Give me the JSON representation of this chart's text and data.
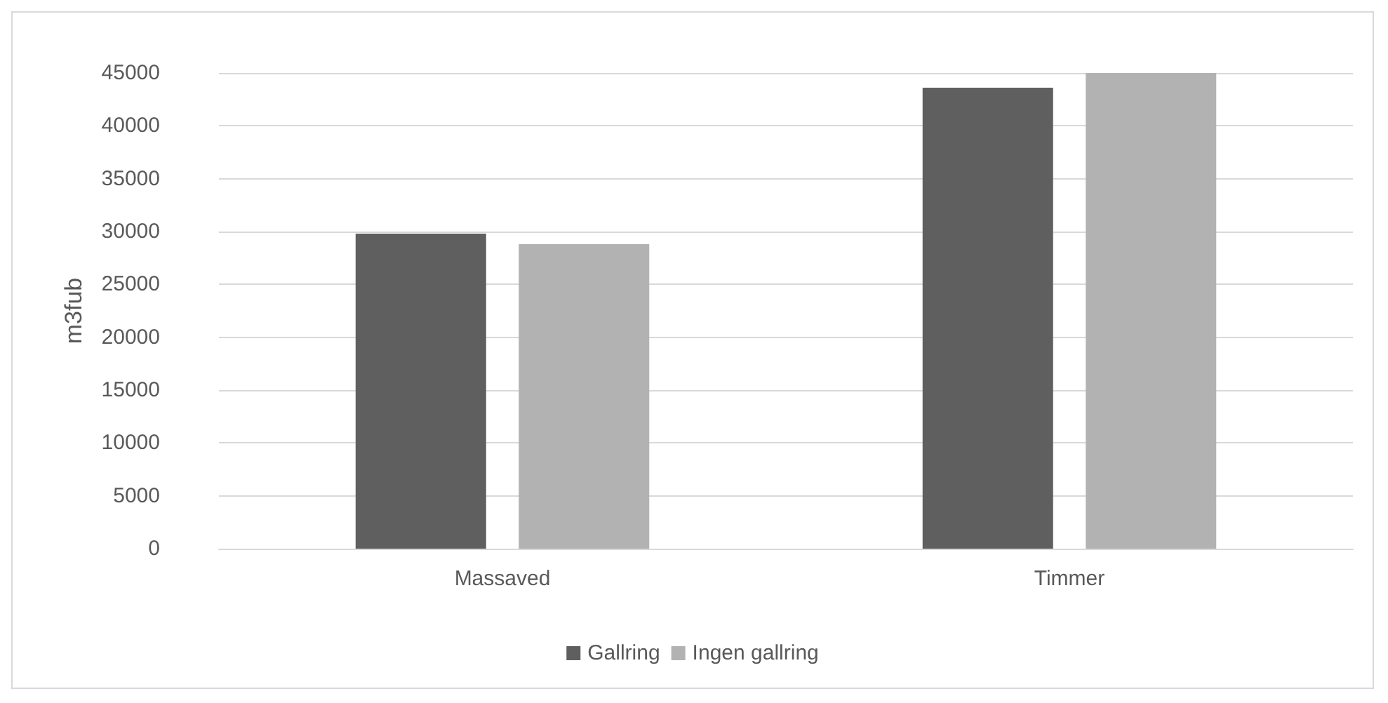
{
  "chart_data": {
    "type": "bar",
    "ylabel": "m3fub",
    "categories": [
      "Massaved",
      "Timmer"
    ],
    "series": [
      {
        "name": "Gallring",
        "color": "#5f5f5f",
        "values": [
          29800,
          43600
        ]
      },
      {
        "name": "Ingen gallring",
        "color": "#b2b2b2",
        "values": [
          28800,
          45000
        ]
      }
    ],
    "ylim": [
      0,
      45000
    ],
    "yticks": [
      0,
      5000,
      10000,
      15000,
      20000,
      25000,
      30000,
      35000,
      40000,
      45000
    ],
    "grid": "y",
    "legend": "bottom"
  }
}
